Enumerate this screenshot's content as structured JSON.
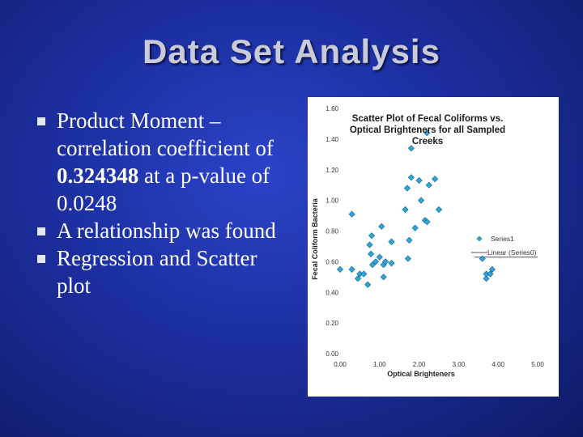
{
  "slide": {
    "title": "Data Set Analysis",
    "bullets": [
      {
        "pre": "Product Moment – correlation coefficient of ",
        "bold": "0.324348",
        "post": " at a p-value of 0.0248"
      },
      {
        "pre": "A relationship was found",
        "bold": "",
        "post": ""
      },
      {
        "pre": "Regression and Scatter plot",
        "bold": "",
        "post": ""
      }
    ]
  },
  "colors": {
    "background": "#1c2fa0",
    "marker": "#2fa5d8",
    "trend": "#ffffff"
  },
  "chart_data": {
    "type": "scatter",
    "title": "Scatter Plot of Fecal Coliforms vs. Optical Brighteners for all Sampled Creeks",
    "title_lines": [
      "Scatter Plot of Fecal Coliforms vs.",
      "Optical Brighteners for all Sampled",
      "Creeks"
    ],
    "xlabel": "Optical Brighteners",
    "ylabel": "Fecal Coliform Bacteria",
    "xlim": [
      0,
      5
    ],
    "ylim": [
      0,
      1.6
    ],
    "xticks": [
      "0.00",
      "1.00",
      "2.00",
      "3.00",
      "4.00",
      "5.00"
    ],
    "yticks": [
      "0.00",
      "0.20",
      "0.40",
      "0.60",
      "0.80",
      "1.00",
      "1.20",
      "1.40",
      "1.60"
    ],
    "legend": {
      "position": "right",
      "entries": [
        "Series1",
        "Linear (Series0)"
      ]
    },
    "grid": false,
    "series": [
      {
        "name": "Series1",
        "points": [
          [
            0.0,
            0.55
          ],
          [
            0.3,
            0.91
          ],
          [
            0.3,
            0.55
          ],
          [
            0.45,
            0.49
          ],
          [
            0.5,
            0.52
          ],
          [
            0.6,
            0.52
          ],
          [
            0.7,
            0.45
          ],
          [
            0.75,
            0.71
          ],
          [
            0.78,
            0.65
          ],
          [
            0.8,
            0.77
          ],
          [
            0.82,
            0.58
          ],
          [
            0.9,
            0.6
          ],
          [
            1.0,
            0.63
          ],
          [
            1.05,
            0.83
          ],
          [
            1.1,
            0.5
          ],
          [
            1.1,
            0.58
          ],
          [
            1.15,
            0.6
          ],
          [
            1.3,
            0.59
          ],
          [
            1.3,
            0.73
          ],
          [
            1.65,
            0.94
          ],
          [
            1.7,
            1.08
          ],
          [
            1.72,
            0.62
          ],
          [
            1.75,
            0.74
          ],
          [
            1.8,
            1.15
          ],
          [
            1.8,
            1.34
          ],
          [
            1.9,
            0.82
          ],
          [
            2.0,
            1.13
          ],
          [
            2.05,
            1.0
          ],
          [
            2.15,
            0.87
          ],
          [
            2.2,
            0.86
          ],
          [
            2.2,
            1.44
          ],
          [
            2.25,
            1.1
          ],
          [
            2.4,
            1.14
          ],
          [
            2.5,
            0.94
          ],
          [
            3.6,
            0.62
          ],
          [
            3.7,
            0.49
          ],
          [
            3.7,
            0.52
          ],
          [
            3.8,
            0.52
          ],
          [
            3.85,
            0.55
          ]
        ]
      }
    ],
    "trendline": {
      "name": "Linear (Series0)",
      "from": [
        3.4,
        0.63
      ],
      "to": [
        5.0,
        0.63
      ]
    }
  }
}
